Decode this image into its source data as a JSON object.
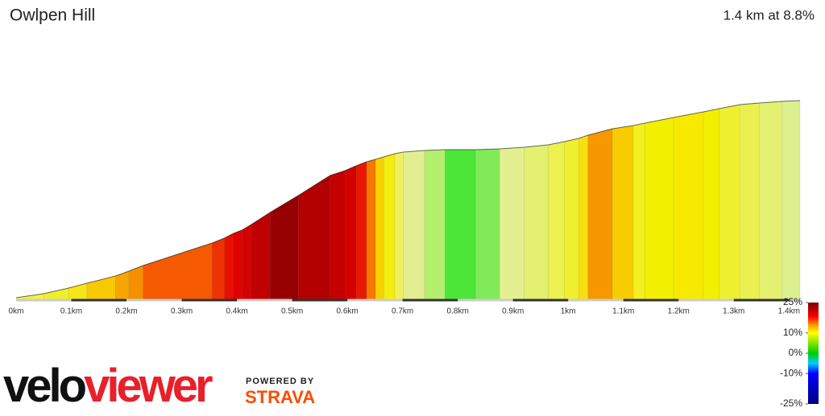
{
  "chart_data": {
    "type": "gradient-profile",
    "title": "Owlpen Hill",
    "subtitle": "1.4 km at 8.8%",
    "x": [
      0,
      0.05,
      0.095,
      0.128,
      0.18,
      0.204,
      0.23,
      0.355,
      0.377,
      0.394,
      0.409,
      0.426,
      0.46,
      0.511,
      0.569,
      0.596,
      0.616,
      0.635,
      0.651,
      0.666,
      0.686,
      0.701,
      0.74,
      0.777,
      0.832,
      0.876,
      0.92,
      0.964,
      0.993,
      1.019,
      1.036,
      1.08,
      1.118,
      1.139,
      1.191,
      1.245,
      1.274,
      1.311,
      1.346,
      1.387,
      1.42
    ],
    "values": [
      1,
      3.5,
      7,
      10,
      14.5,
      17.5,
      21,
      35,
      38,
      41,
      43,
      46.5,
      54,
      64.5,
      77,
      80,
      83,
      85.5,
      87,
      88.5,
      90.5,
      91.5,
      92.5,
      93,
      93,
      93.5,
      94.5,
      96,
      98,
      100,
      102,
      106,
      108,
      109.5,
      113,
      116.5,
      118.5,
      121,
      122,
      123,
      123.5
    ],
    "segment_colors": [
      "#f3f04a",
      "#eef02a",
      "#f5e61a",
      "#f8c800",
      "#f7a600",
      "#f79000",
      "#f55a00",
      "#ee3200",
      "#ea1000",
      "#e00000",
      "#d40000",
      "#c00000",
      "#960000",
      "#b30000",
      "#c40000",
      "#d20000",
      "#e81800",
      "#f57800",
      "#f8d000",
      "#f3ee10",
      "#eef060",
      "#e2ee90",
      "#b4ef70",
      "#4ce638",
      "#80ea58",
      "#e4f090",
      "#e4f070",
      "#ecf050",
      "#f0ef30",
      "#f6e010",
      "#f79800",
      "#f7cc00",
      "#f3ef20",
      "#f2f000",
      "#f7ea00",
      "#f2f000",
      "#eef030",
      "#eaf050",
      "#e4f070",
      "#dcf090"
    ],
    "xlim": [
      0,
      1.42
    ],
    "ylim": [
      0,
      125
    ],
    "xticks": [
      {
        "value": 0,
        "label": "0km"
      },
      {
        "value": 0.1,
        "label": "0.1km"
      },
      {
        "value": 0.2,
        "label": "0.2km"
      },
      {
        "value": 0.3,
        "label": "0.3km"
      },
      {
        "value": 0.4,
        "label": "0.4km"
      },
      {
        "value": 0.5,
        "label": "0.5km"
      },
      {
        "value": 0.6,
        "label": "0.6km"
      },
      {
        "value": 0.7,
        "label": "0.7km"
      },
      {
        "value": 0.8,
        "label": "0.8km"
      },
      {
        "value": 0.9,
        "label": "0.9km"
      },
      {
        "value": 1,
        "label": "1km"
      },
      {
        "value": 1.1,
        "label": "1.1km"
      },
      {
        "value": 1.2,
        "label": "1.2km"
      },
      {
        "value": 1.3,
        "label": "1.3km"
      },
      {
        "value": 1.4,
        "label": "1.4km"
      }
    ],
    "colorbar": {
      "lim": [
        -25,
        25
      ],
      "ticks": [
        {
          "value": 25,
          "label": "25%"
        },
        {
          "value": 10,
          "label": "10%"
        },
        {
          "value": 0,
          "label": "0%"
        },
        {
          "value": -10,
          "label": "-10%"
        },
        {
          "value": -25,
          "label": "-25%"
        }
      ],
      "stops": [
        25,
        18,
        14,
        10,
        0,
        -5,
        -10,
        -25
      ],
      "colors": [
        "#7a0000",
        "#ff0000",
        "#ff9900",
        "#ffff00",
        "#00cc00",
        "#00ccff",
        "#0000ff",
        "#000080"
      ]
    }
  },
  "brand": {
    "velo": "velo",
    "viewer": "viewer",
    "powered_by": "POWERED BY",
    "strava": "STRAVA"
  }
}
